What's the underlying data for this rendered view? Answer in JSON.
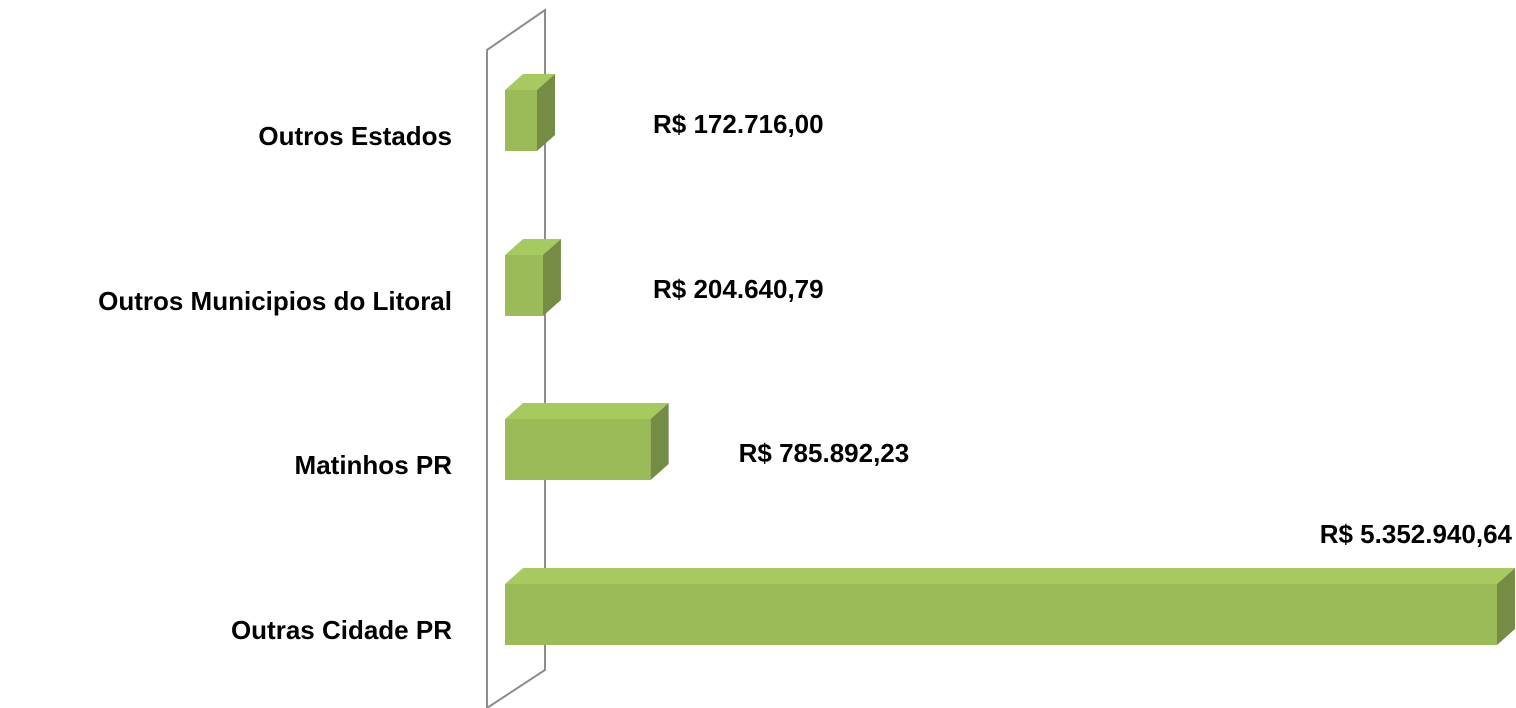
{
  "chart_data": {
    "type": "bar",
    "orientation": "horizontal",
    "categories": [
      "Outros Estados",
      "Outros Municipios do Litoral",
      "Matinhos PR",
      "Outras Cidade PR"
    ],
    "values": [
      172716.0,
      204640.79,
      785892.23,
      5352940.64
    ],
    "value_labels": [
      "R$ 172.716,00",
      "R$ 204.640,79",
      "R$ 785.892,23",
      "R$ 5.352.940,64"
    ],
    "color": "#9bbb59"
  }
}
